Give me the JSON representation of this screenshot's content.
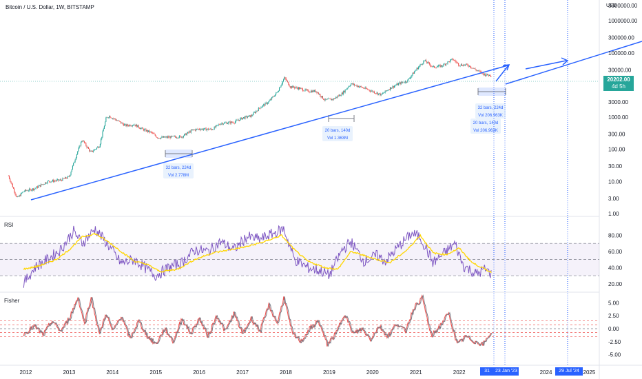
{
  "header": {
    "symbol_title": "Bitcoin / U.S. Dollar, 1W, BITSTAMP",
    "currency": "USD"
  },
  "price_tag": {
    "value": "20202.00",
    "countdown": "4d 5h",
    "color": "#26a69a"
  },
  "date_tags": [
    {
      "label": "31",
      "id": "tag-31"
    },
    {
      "label": "23 Jan '23",
      "id": "tag-jan23"
    },
    {
      "label": "29 Jul '24",
      "id": "tag-jul24"
    }
  ],
  "colors": {
    "candle_up": "#26a69a",
    "candle_down": "#ef5350",
    "trend_line": "#2962ff",
    "rsi_line": "#7e57c2",
    "rsi_ma": "#ffd600",
    "fisher_1": "#ef5350",
    "fisher_2": "#787b86",
    "dotted_marker": "#2962ff"
  },
  "chart_data": [
    {
      "type": "line",
      "name": "price-pane",
      "title": "Bitcoin / U.S. Dollar, 1W, BITSTAMP",
      "scale": "log",
      "ylim": [
        1,
        3000000
      ],
      "y_ticks": [
        "3000000.00",
        "1000000.00",
        "300000.00",
        "100000.00",
        "30000.00",
        "3000.00",
        "1000.00",
        "300.00",
        "100.00",
        "30.00",
        "10.00",
        "3.00",
        "1.00"
      ],
      "y_tick_values": [
        3000000,
        1000000,
        300000,
        100000,
        30000,
        3000,
        1000,
        300,
        100,
        30,
        10,
        3,
        1
      ],
      "x_ticks": [
        "2012",
        "2013",
        "2014",
        "2015",
        "2016",
        "2017",
        "2018",
        "2019",
        "2020",
        "2021",
        "2022",
        "2024",
        "2025"
      ],
      "x_tick_years": [
        2012,
        2013,
        2014,
        2015,
        2016,
        2017,
        2018,
        2019,
        2020,
        2021,
        2022,
        2024,
        2025
      ],
      "series": [
        {
          "x": [
            2011.6,
            2011.8,
            2011.95,
            2012.2,
            2012.5,
            2012.8,
            2013.0,
            2013.2,
            2013.3,
            2013.5,
            2013.7,
            2013.85,
            2013.92,
            2014.1,
            2014.3,
            2014.5,
            2014.7,
            2014.9,
            2015.05,
            2015.3,
            2015.6,
            2015.85,
            2016.0,
            2016.3,
            2016.5,
            2016.8,
            2017.0,
            2017.2,
            2017.4,
            2017.6,
            2017.8,
            2017.97,
            2018.1,
            2018.3,
            2018.5,
            2018.7,
            2018.9,
            2019.1,
            2019.3,
            2019.5,
            2019.7,
            2019.9,
            2020.2,
            2020.4,
            2020.6,
            2020.8,
            2021.0,
            2021.2,
            2021.4,
            2021.6,
            2021.85,
            2022.0,
            2022.2,
            2022.4,
            2022.6,
            2022.75
          ],
          "y": [
            15,
            3,
            5,
            6,
            10,
            11,
            14,
            90,
            200,
            80,
            130,
            900,
            1100,
            800,
            550,
            600,
            420,
            330,
            230,
            240,
            250,
            400,
            430,
            420,
            650,
            700,
            950,
            1100,
            2000,
            3000,
            6000,
            17000,
            9000,
            8000,
            6500,
            6500,
            3400,
            3700,
            5500,
            11000,
            9000,
            7200,
            5000,
            8000,
            11000,
            13500,
            30000,
            58000,
            36000,
            40000,
            64000,
            43000,
            42000,
            29000,
            21000,
            20202
          ]
        }
      ],
      "annotations": [
        {
          "lines": [
            "32 bars, 224d",
            "Vol 2.778M"
          ]
        },
        {
          "lines": [
            "20 bars, 140d",
            "Vol 1.363M"
          ]
        },
        {
          "lines": [
            "32 bars, 224d",
            "Vol 206.963K"
          ]
        },
        {
          "lines": [
            "20 bars, 140d",
            "Vol 206.963K"
          ]
        }
      ]
    },
    {
      "type": "line",
      "name": "rsi-pane",
      "title": "RSI",
      "ylim": [
        13,
        100
      ],
      "y_ticks": [
        "80.00",
        "60.00",
        "40.00",
        "20.00"
      ],
      "y_tick_values": [
        80,
        60,
        40,
        20
      ],
      "band": [
        30,
        70
      ],
      "midline": 50,
      "series": [
        {
          "x": [
            2011.95,
            2012.2,
            2012.5,
            2012.8,
            2013.1,
            2013.3,
            2013.6,
            2013.9,
            2014.2,
            2014.5,
            2014.8,
            2015.0,
            2015.3,
            2015.6,
            2015.9,
            2016.2,
            2016.5,
            2016.8,
            2017.1,
            2017.4,
            2017.7,
            2017.95,
            2018.2,
            2018.5,
            2018.8,
            2019.0,
            2019.3,
            2019.5,
            2019.8,
            2020.1,
            2020.3,
            2020.6,
            2020.9,
            2021.1,
            2021.4,
            2021.7,
            2021.9,
            2022.1,
            2022.4,
            2022.6,
            2022.75
          ],
          "y": [
            20,
            40,
            50,
            62,
            85,
            70,
            88,
            68,
            45,
            50,
            38,
            30,
            40,
            46,
            62,
            60,
            72,
            62,
            78,
            75,
            82,
            88,
            50,
            40,
            36,
            30,
            62,
            72,
            48,
            55,
            48,
            66,
            82,
            78,
            46,
            60,
            70,
            42,
            32,
            38,
            32
          ]
        },
        {
          "x": [
            2011.95,
            2012.3,
            2012.7,
            2013.0,
            2013.3,
            2013.6,
            2013.9,
            2014.2,
            2014.5,
            2014.8,
            2015.1,
            2015.5,
            2015.9,
            2016.3,
            2016.7,
            2017.1,
            2017.5,
            2017.9,
            2018.2,
            2018.5,
            2018.9,
            2019.2,
            2019.5,
            2019.8,
            2020.1,
            2020.4,
            2020.8,
            2021.1,
            2021.4,
            2021.7,
            2022.0,
            2022.3,
            2022.6,
            2022.75
          ],
          "y": [
            38,
            42,
            50,
            62,
            78,
            82,
            72,
            60,
            48,
            44,
            35,
            38,
            50,
            58,
            62,
            66,
            72,
            80,
            62,
            48,
            40,
            38,
            60,
            55,
            50,
            46,
            62,
            80,
            58,
            56,
            64,
            46,
            38,
            34
          ]
        }
      ]
    },
    {
      "type": "line",
      "name": "fisher-pane",
      "title": "Fisher",
      "ylim": [
        -6.5,
        6.5
      ],
      "y_ticks": [
        "5.00",
        "2.50",
        "0.00",
        "-2.50",
        "-5.00"
      ],
      "y_tick_values": [
        5,
        2.5,
        0,
        -2.5,
        -5
      ],
      "levels": [
        1.5,
        0.75,
        -0.75,
        -1.5
      ],
      "series": [
        {
          "x": [
            2011.95,
            2012.2,
            2012.4,
            2012.6,
            2012.8,
            2013.0,
            2013.2,
            2013.35,
            2013.5,
            2013.7,
            2013.85,
            2014.0,
            2014.2,
            2014.4,
            2014.6,
            2014.8,
            2015.0,
            2015.2,
            2015.4,
            2015.6,
            2015.8,
            2016.0,
            2016.2,
            2016.4,
            2016.6,
            2016.8,
            2017.0,
            2017.2,
            2017.4,
            2017.6,
            2017.8,
            2017.95,
            2018.15,
            2018.35,
            2018.55,
            2018.75,
            2018.95,
            2019.15,
            2019.35,
            2019.55,
            2019.75,
            2019.95,
            2020.15,
            2020.35,
            2020.55,
            2020.75,
            2020.95,
            2021.15,
            2021.35,
            2021.55,
            2021.75,
            2021.95,
            2022.15,
            2022.35,
            2022.55,
            2022.75
          ],
          "y": [
            -1,
            0.5,
            -1.2,
            1.5,
            -0.5,
            2,
            6,
            1,
            6,
            -1,
            3,
            -0.5,
            2.5,
            -2,
            1.5,
            -1.5,
            -3,
            0,
            -2.5,
            2,
            -1,
            2,
            -1.5,
            2.5,
            -0.5,
            3,
            -1,
            2,
            -0.5,
            4.5,
            1,
            6,
            -1,
            -2.5,
            0,
            1.5,
            -3,
            -1,
            3,
            -1,
            0,
            -2,
            0.5,
            -1.5,
            1,
            -0.5,
            4,
            6,
            -1.5,
            0.5,
            3,
            -3,
            -1.5,
            -2.5,
            -3,
            -0.5
          ]
        }
      ]
    }
  ]
}
